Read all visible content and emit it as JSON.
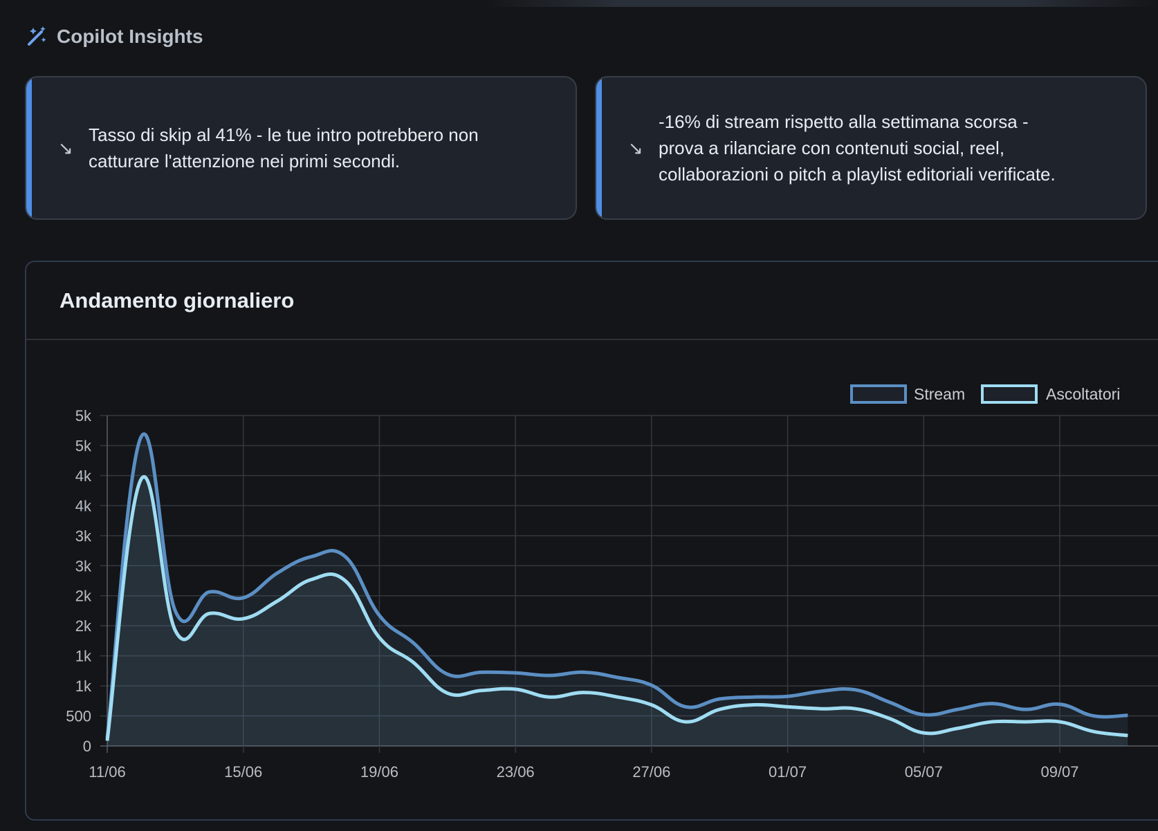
{
  "insights": {
    "title": "Copilot Insights",
    "icon": "magic-wand-sparkles-icon",
    "cards": [
      {
        "arrow": "↘",
        "text_lines": [
          "Tasso di skip al 41% - le tue intro potrebbero non",
          "catturare l'attenzione nei primi secondi."
        ]
      },
      {
        "arrow": "↘",
        "text_lines": [
          "-16% di stream rispetto alla settimana scorsa -",
          "prova a rilanciare con contenuti social, reel,",
          "collaborazioni o pitch a playlist editoriali verificate."
        ]
      }
    ]
  },
  "panel": {
    "title": "Andamento giornaliero"
  },
  "colors": {
    "accent": "#4f8ee6",
    "stream": "#5b8fc4",
    "ascoltatori": "#9fdcf2"
  },
  "chart_data": {
    "type": "line",
    "area_fill": true,
    "y_tick_labels": [
      "0",
      "500",
      "1k",
      "1k",
      "2k",
      "2k",
      "3k",
      "3k",
      "4k",
      "4k",
      "5k",
      "5k"
    ],
    "x": [
      "11/06",
      "12/06",
      "13/06",
      "14/06",
      "15/06",
      "16/06",
      "17/06",
      "18/06",
      "19/06",
      "20/06",
      "21/06",
      "22/06",
      "23/06",
      "24/06",
      "25/06",
      "26/06",
      "27/06",
      "28/06",
      "29/06",
      "30/06",
      "01/07",
      "02/07",
      "03/07",
      "04/07",
      "05/07",
      "06/07",
      "07/07",
      "08/07",
      "09/07",
      "10/07",
      "11/07"
    ],
    "x_tick_labels": [
      "11/06",
      "15/06",
      "19/06",
      "23/06",
      "27/06",
      "01/07",
      "05/07",
      "09/07"
    ],
    "ylim": [
      0,
      5000
    ],
    "grid": true,
    "legend_position": "top-right",
    "series": [
      {
        "name": "Stream",
        "color": "#5b8fc4",
        "values": [
          120,
          4740,
          2070,
          2360,
          2270,
          2650,
          2900,
          2900,
          2000,
          1580,
          1100,
          1130,
          1120,
          1080,
          1130,
          1050,
          930,
          600,
          720,
          750,
          760,
          840,
          860,
          670,
          480,
          560,
          650,
          560,
          640,
          460,
          470
        ]
      },
      {
        "name": "Ascoltatori",
        "color": "#9fdcf2",
        "values": [
          80,
          4090,
          1770,
          2030,
          1950,
          2220,
          2550,
          2530,
          1660,
          1280,
          810,
          850,
          870,
          750,
          820,
          750,
          630,
          370,
          560,
          630,
          600,
          570,
          570,
          420,
          200,
          270,
          370,
          370,
          370,
          220,
          160
        ]
      }
    ]
  }
}
